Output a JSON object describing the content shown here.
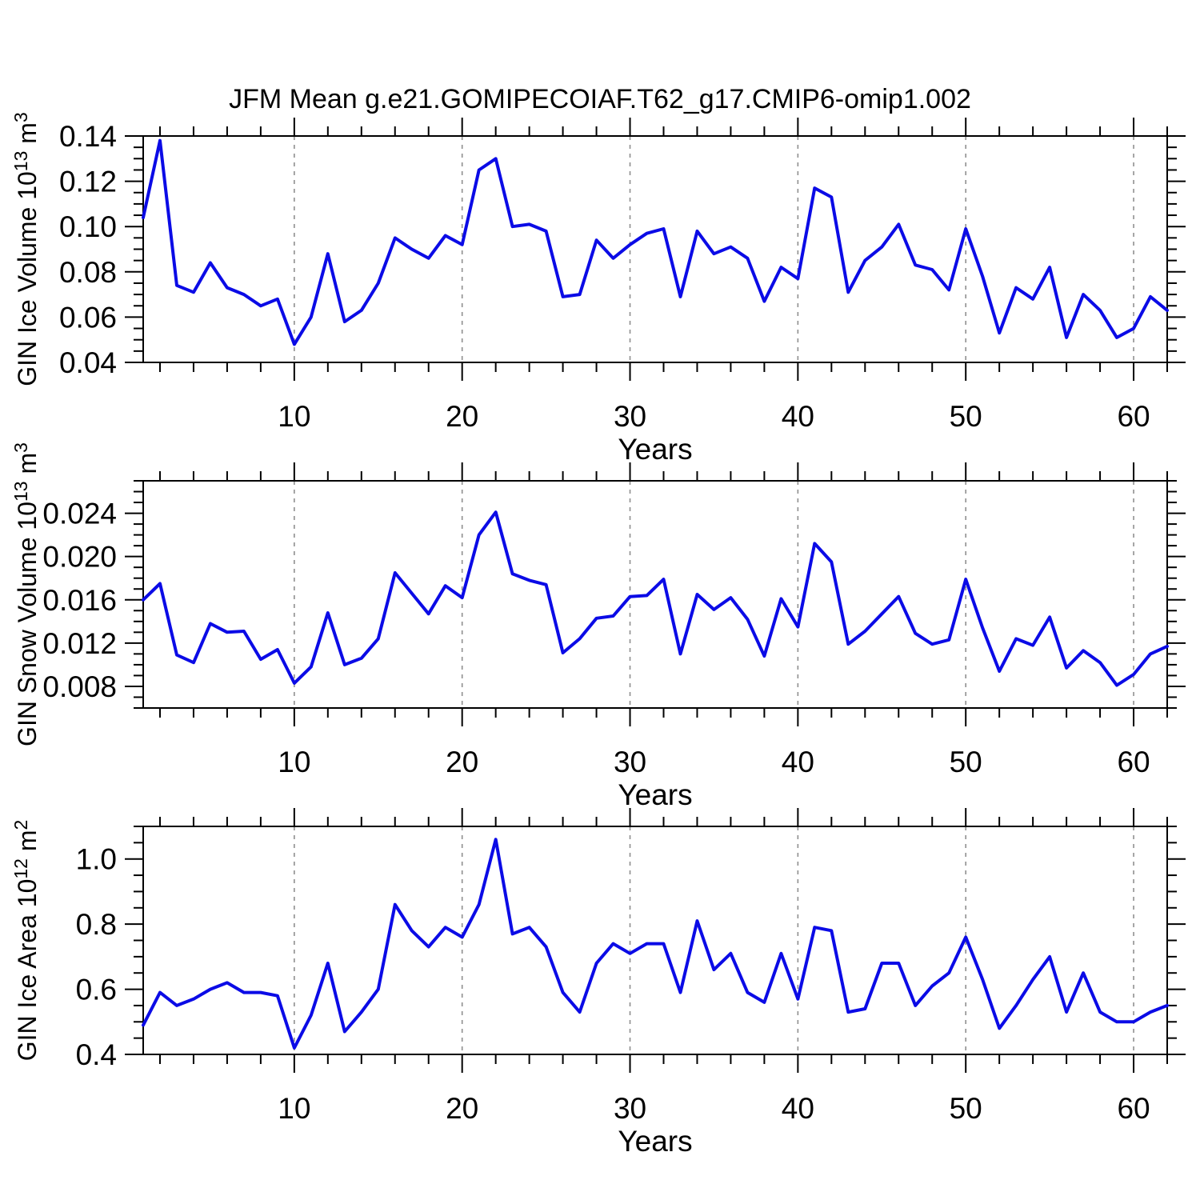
{
  "title": "JFM Mean g.e21.GOMIPECOIAF.T62_g17.CMIP6-omip1.002",
  "chart_data": {
    "type": "line",
    "title": "JFM Mean g.e21.GOMIPECOIAF.T62_g17.CMIP6-omip1.002",
    "legend": "none",
    "grid": "dashed vertical gridlines at x major ticks",
    "style": {
      "line_color": "#0b0be6",
      "grid_color": "#8f8f8f",
      "frame_color": "#000000",
      "background": "#ffffff"
    },
    "x": {
      "label": "Years",
      "range": [
        1,
        62
      ],
      "major_ticks": [
        10,
        20,
        30,
        40,
        50,
        60
      ],
      "major_tick_labels": [
        "10",
        "20",
        "30",
        "40",
        "50",
        "60"
      ],
      "minor_step": 2
    },
    "charts": [
      {
        "name": "gin-ice-volume",
        "ylabel": "GIN Ice Volume 10^13 m^3",
        "ylabel_parts": [
          {
            "t": "GIN Ice Volume 10"
          },
          {
            "t": "13",
            "sup": true
          },
          {
            "t": " m"
          },
          {
            "t": "3",
            "sup": true
          }
        ],
        "xlabel": "Years",
        "y_range": [
          0.04,
          0.14
        ],
        "y_major_ticks": [
          0.04,
          0.06,
          0.08,
          0.1,
          0.12,
          0.14
        ],
        "y_tick_labels": [
          "0.04",
          "0.06",
          "0.08",
          "0.10",
          "0.12",
          "0.14"
        ],
        "y_minor_step": 0.005,
        "values": [
          0.104,
          0.138,
          0.074,
          0.071,
          0.084,
          0.073,
          0.07,
          0.065,
          0.068,
          0.048,
          0.06,
          0.088,
          0.058,
          0.063,
          0.075,
          0.095,
          0.09,
          0.086,
          0.096,
          0.092,
          0.125,
          0.13,
          0.1,
          0.101,
          0.098,
          0.069,
          0.07,
          0.094,
          0.086,
          0.092,
          0.097,
          0.099,
          0.069,
          0.098,
          0.088,
          0.091,
          0.086,
          0.067,
          0.082,
          0.077,
          0.117,
          0.113,
          0.071,
          0.085,
          0.091,
          0.101,
          0.083,
          0.081,
          0.072,
          0.099,
          0.078,
          0.053,
          0.073,
          0.068,
          0.082,
          0.051,
          0.07,
          0.063,
          0.051,
          0.055,
          0.069,
          0.063
        ]
      },
      {
        "name": "gin-snow-volume",
        "ylabel": "GIN Snow Volume 10^13 m^3",
        "ylabel_parts": [
          {
            "t": "GIN Snow Volume 10"
          },
          {
            "t": "13",
            "sup": true
          },
          {
            "t": " m"
          },
          {
            "t": "3",
            "sup": true
          }
        ],
        "xlabel": "Years",
        "y_range": [
          0.006,
          0.027
        ],
        "y_major_ticks": [
          0.008,
          0.012,
          0.016,
          0.02,
          0.024
        ],
        "y_tick_labels": [
          "0.008",
          "0.012",
          "0.016",
          "0.020",
          "0.024"
        ],
        "y_minor_step": 0.001,
        "values": [
          0.016,
          0.0175,
          0.0109,
          0.0102,
          0.0138,
          0.013,
          0.0131,
          0.0105,
          0.0114,
          0.0083,
          0.0098,
          0.0148,
          0.01,
          0.0106,
          0.0124,
          0.0185,
          0.0166,
          0.0147,
          0.0173,
          0.0162,
          0.022,
          0.0241,
          0.0184,
          0.0178,
          0.0174,
          0.0111,
          0.0124,
          0.0143,
          0.0145,
          0.0163,
          0.0164,
          0.0179,
          0.011,
          0.0165,
          0.0151,
          0.0162,
          0.0142,
          0.0108,
          0.0161,
          0.0135,
          0.0212,
          0.0195,
          0.0119,
          0.0131,
          0.0147,
          0.0163,
          0.0129,
          0.0119,
          0.0123,
          0.0179,
          0.0134,
          0.0094,
          0.0124,
          0.0118,
          0.0144,
          0.0097,
          0.0113,
          0.0102,
          0.0081,
          0.0091,
          0.011,
          0.0117
        ]
      },
      {
        "name": "gin-ice-area",
        "ylabel": "GIN Ice Area 10^12 m^2",
        "ylabel_parts": [
          {
            "t": "GIN Ice Area 10"
          },
          {
            "t": "12",
            "sup": true
          },
          {
            "t": " m"
          },
          {
            "t": "2",
            "sup": true
          }
        ],
        "xlabel": "Years",
        "y_range": [
          0.4,
          1.1
        ],
        "y_major_ticks": [
          0.4,
          0.6,
          0.8,
          1.0
        ],
        "y_tick_labels": [
          "0.4",
          "0.6",
          "0.8",
          "1.0"
        ],
        "y_minor_step": 0.05,
        "values": [
          0.49,
          0.59,
          0.55,
          0.57,
          0.6,
          0.62,
          0.59,
          0.59,
          0.58,
          0.42,
          0.52,
          0.68,
          0.47,
          0.53,
          0.6,
          0.86,
          0.78,
          0.73,
          0.79,
          0.76,
          0.86,
          1.06,
          0.77,
          0.79,
          0.73,
          0.59,
          0.53,
          0.68,
          0.74,
          0.71,
          0.74,
          0.74,
          0.59,
          0.81,
          0.66,
          0.71,
          0.59,
          0.56,
          0.71,
          0.57,
          0.79,
          0.78,
          0.53,
          0.54,
          0.68,
          0.68,
          0.55,
          0.61,
          0.65,
          0.76,
          0.63,
          0.48,
          0.55,
          0.63,
          0.7,
          0.53,
          0.65,
          0.53,
          0.5,
          0.5,
          0.53,
          0.55
        ]
      }
    ]
  }
}
